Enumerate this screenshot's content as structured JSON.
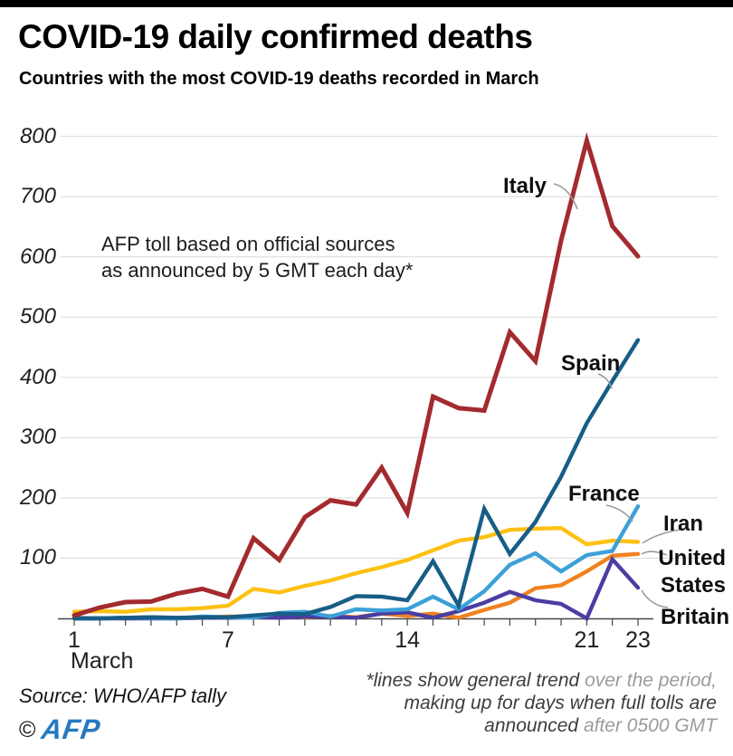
{
  "page": {
    "title": "COVID-19 daily confirmed deaths",
    "subtitle": "Countries with the most COVID-19 deaths recorded in March"
  },
  "chart_data": {
    "type": "line",
    "title": "COVID-19 daily confirmed deaths",
    "subtitle": "Countries with the most COVID-19 deaths recorded in March",
    "xlabel": "March",
    "ylabel": "",
    "x": [
      1,
      2,
      3,
      4,
      5,
      6,
      7,
      8,
      9,
      10,
      11,
      12,
      13,
      14,
      15,
      16,
      17,
      18,
      19,
      20,
      21,
      22,
      23
    ],
    "x_tick_days": [
      1,
      7,
      14,
      21,
      23
    ],
    "x_tick_labels": [
      "1",
      "7",
      "14",
      "21",
      "23"
    ],
    "yticks": [
      100,
      200,
      300,
      400,
      500,
      600,
      700,
      800
    ],
    "ytick_labels": [
      "100",
      "200",
      "300",
      "400",
      "500",
      "600",
      "700",
      "800"
    ],
    "ylim": [
      0,
      800
    ],
    "grid": "horizontal",
    "legend_position": "end-of-line-labels",
    "annotation": "AFP toll based on official sources\nas announced by 5 GMT each day*",
    "series": [
      {
        "name": "Italy",
        "label": "Italy",
        "color": "#a32a2e",
        "values": [
          5,
          18,
          27,
          28,
          41,
          49,
          36,
          133,
          97,
          168,
          196,
          189,
          250,
          175,
          368,
          349,
          345,
          475,
          427,
          627,
          793,
          651,
          601
        ]
      },
      {
        "name": "Spain",
        "label": "Spain",
        "color": "#175e86",
        "values": [
          0,
          0,
          1,
          2,
          1,
          2,
          2,
          5,
          8,
          7,
          19,
          37,
          36,
          30,
          95,
          21,
          182,
          107,
          160,
          235,
          324,
          394,
          462
        ]
      },
      {
        "name": "France",
        "label": "France",
        "color": "#3da0d8",
        "values": [
          0,
          0,
          1,
          1,
          0,
          3,
          2,
          1,
          9,
          11,
          3,
          15,
          13,
          15,
          36,
          15,
          45,
          89,
          108,
          78,
          105,
          112,
          186
        ]
      },
      {
        "name": "Iran",
        "label": "Iran",
        "color": "#fdc113",
        "values": [
          11,
          12,
          11,
          15,
          15,
          17,
          21,
          49,
          43,
          54,
          63,
          75,
          85,
          97,
          113,
          129,
          135,
          147,
          149,
          150,
          123,
          129,
          127
        ]
      },
      {
        "name": "United States",
        "label": "United\nStates",
        "color": "#f08220",
        "values": [
          1,
          0,
          1,
          2,
          1,
          1,
          3,
          3,
          4,
          2,
          4,
          2,
          8,
          4,
          8,
          1,
          14,
          26,
          50,
          55,
          78,
          104,
          107
        ]
      },
      {
        "name": "Britain",
        "label": "Britain",
        "color": "#4a3da3",
        "values": [
          0,
          0,
          0,
          0,
          0,
          1,
          1,
          2,
          1,
          3,
          3,
          1,
          8,
          10,
          1,
          12,
          26,
          44,
          30,
          24,
          0,
          98,
          51
        ]
      }
    ],
    "style": {
      "grid_color": "#d9d9d9",
      "axis_color": "#454545",
      "pointer_color": "#9a9a9a"
    }
  },
  "footer": {
    "source": "Source: WHO/AFP tally",
    "footnote": {
      "lines": [
        {
          "dark": "*lines show general trend ",
          "light": "over the period,"
        },
        {
          "dark": "making up for days when full tolls are",
          "light": ""
        },
        {
          "dark": "announced ",
          "light": "after 0500 GMT"
        }
      ]
    },
    "copyright": "©",
    "logo": "AFP"
  }
}
